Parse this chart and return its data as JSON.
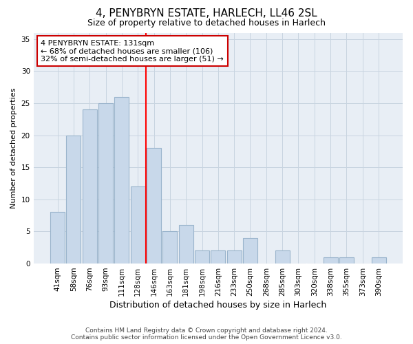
{
  "title": "4, PENYBRYN ESTATE, HARLECH, LL46 2SL",
  "subtitle": "Size of property relative to detached houses in Harlech",
  "xlabel": "Distribution of detached houses by size in Harlech",
  "ylabel": "Number of detached properties",
  "categories": [
    "41sqm",
    "58sqm",
    "76sqm",
    "93sqm",
    "111sqm",
    "128sqm",
    "146sqm",
    "163sqm",
    "181sqm",
    "198sqm",
    "216sqm",
    "233sqm",
    "250sqm",
    "268sqm",
    "285sqm",
    "303sqm",
    "320sqm",
    "338sqm",
    "355sqm",
    "373sqm",
    "390sqm"
  ],
  "values": [
    8,
    20,
    24,
    25,
    26,
    12,
    18,
    5,
    6,
    2,
    2,
    2,
    4,
    0,
    2,
    0,
    0,
    1,
    1,
    0,
    1
  ],
  "bar_color": "#c8d8ea",
  "bar_edge_color": "#9ab4cc",
  "redline_index": 5.5,
  "annotation_line1": "4 PENYBRYN ESTATE: 131sqm",
  "annotation_line2": "← 68% of detached houses are smaller (106)",
  "annotation_line3": "32% of semi-detached houses are larger (51) →",
  "annotation_box_facecolor": "#ffffff",
  "annotation_box_edgecolor": "#cc0000",
  "ylim": [
    0,
    36
  ],
  "yticks": [
    0,
    5,
    10,
    15,
    20,
    25,
    30,
    35
  ],
  "grid_color": "#c8d4e0",
  "background_color": "#e8eef5",
  "title_fontsize": 11,
  "subtitle_fontsize": 9,
  "ylabel_fontsize": 8,
  "xlabel_fontsize": 9,
  "tick_fontsize": 7.5,
  "footer_line1": "Contains HM Land Registry data © Crown copyright and database right 2024.",
  "footer_line2": "Contains public sector information licensed under the Open Government Licence v3.0."
}
